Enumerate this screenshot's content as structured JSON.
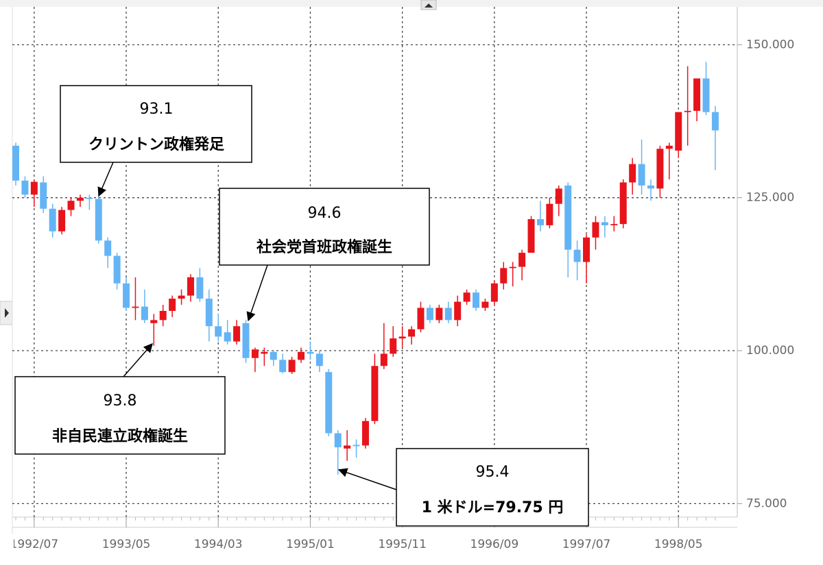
{
  "chart_data": {
    "type": "candlestick",
    "categories": [
      null,
      null,
      "1992/07",
      null,
      null,
      null,
      null,
      null,
      null,
      null,
      null,
      null,
      "1993/05",
      null,
      null,
      null,
      null,
      null,
      null,
      null,
      null,
      null,
      "1994/03",
      null,
      null,
      null,
      null,
      null,
      null,
      null,
      null,
      null,
      "1995/01",
      null,
      null,
      null,
      null,
      null,
      null,
      null,
      null,
      null,
      "1995/11",
      null,
      null,
      null,
      null,
      null,
      null,
      null,
      null,
      null,
      "1996/09",
      null,
      null,
      null,
      null,
      null,
      null,
      null,
      null,
      null,
      "1997/07",
      null,
      null,
      null,
      null,
      null,
      null,
      null,
      null,
      null,
      "1998/05",
      null,
      null,
      null,
      null
    ],
    "open": [
      133.5,
      127.8,
      125.5,
      127.5,
      123.2,
      119.5,
      123,
      124.5,
      125,
      124.8,
      118,
      115.5,
      111,
      107,
      107.2,
      104.5,
      105,
      106.5,
      108.5,
      109,
      112,
      108.5,
      104,
      103,
      101.5,
      104.5,
      98.8,
      99.5,
      99.8,
      98.5,
      96.5,
      98.5,
      99.8,
      99.5,
      96.5,
      86.5,
      84,
      84.6,
      84.5,
      88.5,
      97.5,
      99.5,
      102,
      102.3,
      103.5,
      107,
      105,
      107,
      105,
      108,
      109.5,
      107,
      108,
      111,
      113.5,
      113.7,
      116,
      121.5,
      120.5,
      124,
      127,
      116.5,
      114.5,
      118.5,
      121,
      120.5,
      120.7,
      127.5,
      130.5,
      127,
      126.5,
      133,
      132.7,
      139,
      139.2,
      144.5,
      139
    ],
    "high": [
      134,
      128.5,
      128,
      128.5,
      124,
      123.5,
      125,
      125.5,
      125.5,
      125.5,
      118.5,
      116,
      112,
      112,
      110,
      106,
      107.5,
      109,
      110,
      112.5,
      113.5,
      110,
      106,
      105,
      105,
      105,
      100.5,
      100.5,
      100,
      99.5,
      99,
      100.5,
      101.5,
      100,
      97,
      87,
      87,
      85.5,
      89,
      99.5,
      104.5,
      104,
      104,
      104,
      108,
      107.5,
      107.5,
      108,
      109,
      110,
      110,
      108.5,
      111.5,
      114.5,
      114.5,
      116.5,
      122,
      124.5,
      125,
      127,
      127.5,
      118,
      119,
      122,
      122,
      122,
      128,
      131.5,
      134.5,
      128,
      133.5,
      134,
      139,
      146.5,
      144.5,
      147.2,
      140
    ],
    "low": [
      127,
      125,
      123.5,
      122.5,
      118.5,
      119,
      122,
      123.5,
      123,
      117.5,
      113.5,
      110,
      106.5,
      105,
      104.5,
      100.8,
      104,
      105.5,
      107.5,
      108,
      108,
      101.5,
      101.5,
      101,
      101,
      98,
      96.5,
      97.5,
      97.5,
      96.3,
      96.2,
      98,
      98.5,
      96.5,
      86,
      79.75,
      82,
      82.5,
      84,
      88,
      97,
      99,
      100.5,
      101,
      103,
      104.5,
      104.5,
      104.5,
      104,
      107.5,
      106.5,
      106.5,
      107.5,
      110,
      110.5,
      111.5,
      116,
      119.5,
      120,
      122,
      112,
      111.5,
      111,
      116.5,
      118.5,
      119.5,
      120,
      125.5,
      125.5,
      124.5,
      125,
      128,
      131.5,
      133.5,
      137.5,
      138.5,
      129.5
    ],
    "close": [
      127.8,
      125.5,
      127.6,
      123.2,
      119.5,
      123,
      124.5,
      125,
      124.8,
      118,
      115.5,
      111,
      107,
      107.2,
      105,
      105,
      106.5,
      108.5,
      109,
      112,
      108.5,
      104,
      102.3,
      101.5,
      104,
      98.8,
      100.2,
      99.8,
      98.5,
      96.5,
      98.5,
      99.8,
      99.5,
      97.5,
      86.5,
      84.2,
      84.5,
      84.4,
      88.5,
      97.5,
      99.5,
      102,
      102.3,
      103.5,
      107,
      105,
      107,
      105,
      108,
      109.5,
      107,
      108,
      111,
      113.5,
      113.7,
      116,
      121.5,
      120.5,
      124,
      126.5,
      116.5,
      114.5,
      118.5,
      121,
      120.5,
      120.7,
      127.5,
      130.5,
      127,
      126.5,
      133,
      133.5,
      139,
      139.2,
      144.5,
      139,
      136
    ],
    "up_color": "#e8141b",
    "down_color": "#64b4f5",
    "ylim": [
      72.8,
      156.2
    ],
    "yticks": [
      {
        "value": 75,
        "label": "75.000"
      },
      {
        "value": 100,
        "label": "100.000"
      },
      {
        "value": 125,
        "label": "125.000"
      },
      {
        "value": 150,
        "label": "150.000"
      }
    ],
    "grid": true,
    "annotations": [
      {
        "label": "93.1",
        "text": "クリントン政権発足"
      },
      {
        "label": "94.6",
        "text": "社会党首班政権誕生"
      },
      {
        "label": "93.8",
        "text": "非自民連立政権誕生"
      },
      {
        "label": "95.4",
        "text": "1 米ドル=79.75 円"
      }
    ]
  }
}
